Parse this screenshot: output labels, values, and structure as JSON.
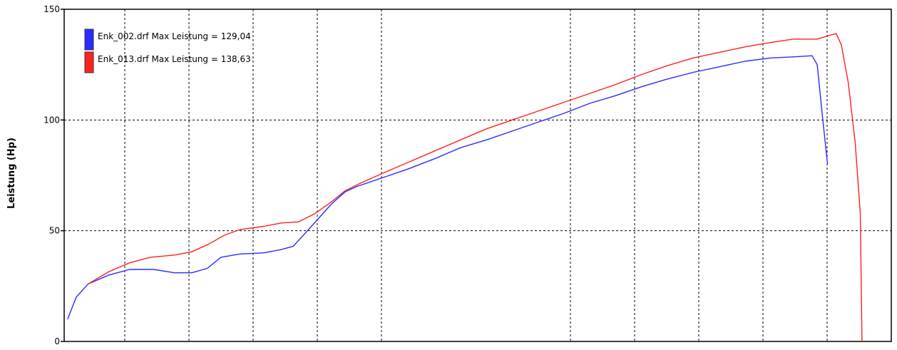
{
  "chart_data": {
    "type": "line",
    "title": "",
    "ylabel": "Leistung (Hp)",
    "xlabel": "",
    "ylim": [
      0,
      150
    ],
    "y_ticks": [
      0,
      50,
      100,
      150
    ],
    "grid": true,
    "legend_position": "top-left",
    "series": [
      {
        "name": "Enk_002.drf Max Leistung = 129,04",
        "color": "#2b2bff",
        "values": [
          [
            0.2,
            10
          ],
          [
            0.7,
            20
          ],
          [
            1.4,
            26
          ],
          [
            2.6,
            30
          ],
          [
            3.8,
            32.5
          ],
          [
            5.2,
            32.5
          ],
          [
            6.4,
            31
          ],
          [
            7.4,
            31
          ],
          [
            8.3,
            33
          ],
          [
            9.1,
            38
          ],
          [
            10.2,
            39.5
          ],
          [
            11.6,
            40
          ],
          [
            12.6,
            41.5
          ],
          [
            13.3,
            43
          ],
          [
            14.0,
            49
          ],
          [
            14.7,
            55
          ],
          [
            15.5,
            62
          ],
          [
            16.3,
            67.5
          ],
          [
            17.0,
            70
          ],
          [
            18.5,
            74
          ],
          [
            20.0,
            78
          ],
          [
            21.5,
            82.5
          ],
          [
            23.0,
            87.5
          ],
          [
            24.5,
            91
          ],
          [
            26.0,
            95
          ],
          [
            27.5,
            99
          ],
          [
            29.0,
            103
          ],
          [
            30.5,
            107.5
          ],
          [
            32.0,
            111
          ],
          [
            33.5,
            115
          ],
          [
            35.0,
            118.5
          ],
          [
            36.5,
            121.5
          ],
          [
            38.0,
            124
          ],
          [
            39.5,
            126.5
          ],
          [
            41.0,
            128
          ],
          [
            42.3,
            128.5
          ],
          [
            43.4,
            129
          ],
          [
            43.7,
            125
          ],
          [
            44.0,
            102
          ],
          [
            44.3,
            80
          ]
        ]
      },
      {
        "name": "Enk_013.drf Max Leistung = 138,63",
        "color": "#ff2020",
        "values": [
          [
            1.4,
            26
          ],
          [
            2.6,
            31.5
          ],
          [
            3.8,
            35.5
          ],
          [
            5.0,
            38
          ],
          [
            6.4,
            39
          ],
          [
            7.4,
            40.5
          ],
          [
            8.4,
            44
          ],
          [
            9.3,
            48
          ],
          [
            10.2,
            50.5
          ],
          [
            11.6,
            52
          ],
          [
            12.6,
            53.5
          ],
          [
            13.6,
            54
          ],
          [
            14.5,
            57.5
          ],
          [
            15.5,
            63
          ],
          [
            16.3,
            68
          ],
          [
            17.2,
            71.5
          ],
          [
            18.5,
            76
          ],
          [
            20.0,
            81
          ],
          [
            21.5,
            86
          ],
          [
            23.0,
            91
          ],
          [
            24.5,
            96
          ],
          [
            26.0,
            100
          ],
          [
            27.5,
            104
          ],
          [
            29.0,
            108
          ],
          [
            30.5,
            112
          ],
          [
            32.0,
            116
          ],
          [
            33.5,
            120.5
          ],
          [
            35.0,
            124.5
          ],
          [
            36.5,
            128
          ],
          [
            38.0,
            130.5
          ],
          [
            39.5,
            133
          ],
          [
            41.0,
            135
          ],
          [
            42.3,
            136.5
          ],
          [
            43.7,
            136.5
          ],
          [
            44.3,
            138
          ],
          [
            44.8,
            139
          ],
          [
            45.1,
            134
          ],
          [
            45.5,
            117
          ],
          [
            45.9,
            90
          ],
          [
            46.2,
            58
          ],
          [
            46.3,
            0
          ]
        ]
      }
    ]
  }
}
